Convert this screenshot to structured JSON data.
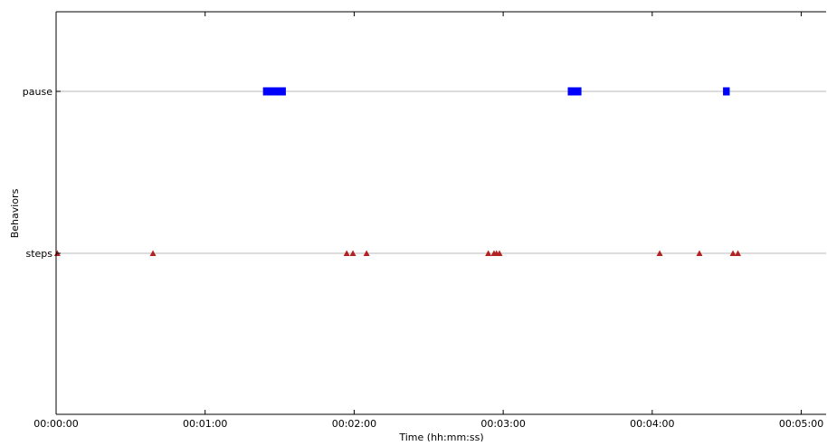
{
  "chart_data": {
    "type": "scatter",
    "title": "",
    "xlabel": "Time (hh:mm:ss)",
    "ylabel": "Behaviors",
    "xlim": [
      0,
      310
    ],
    "x_ticks": [
      {
        "value": 0,
        "label": "00:00:00"
      },
      {
        "value": 60,
        "label": "00:01:00"
      },
      {
        "value": 120,
        "label": "00:02:00"
      },
      {
        "value": 180,
        "label": "00:03:00"
      },
      {
        "value": 240,
        "label": "00:04:00"
      },
      {
        "value": 300,
        "label": "00:05:00"
      }
    ],
    "categories": [
      "steps",
      "pause"
    ],
    "behavior_lines": true,
    "series": [
      {
        "category": "pause",
        "mark": "interval",
        "color": "#0000ff",
        "intervals": [
          [
            83.3,
            92.5
          ],
          [
            206.0,
            211.5
          ],
          [
            268.5,
            271.2
          ]
        ]
      },
      {
        "category": "steps",
        "mark": "triangle",
        "color": "#b22222",
        "points": [
          0.5,
          39.0,
          117.0,
          119.5,
          125.0,
          174.0,
          176.3,
          177.3,
          178.5,
          243.0,
          259.0,
          272.5,
          274.5
        ]
      }
    ]
  }
}
